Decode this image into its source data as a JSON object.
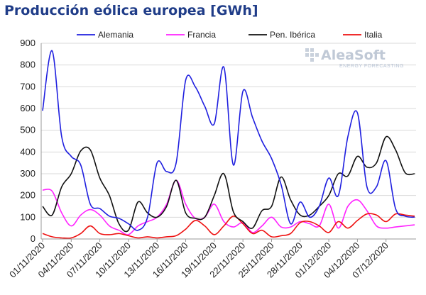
{
  "chart_data": {
    "type": "line",
    "title": "Producción eólica europea [GWh]",
    "xlabel": "",
    "ylabel": "",
    "ylim": [
      0,
      900
    ],
    "yticks": [
      0,
      100,
      200,
      300,
      400,
      500,
      600,
      700,
      800,
      900
    ],
    "grid": true,
    "legend_position": "top",
    "x_tick_labels": [
      "01/11/2020",
      "04/11/2020",
      "07/11/2020",
      "10/11/2020",
      "13/11/2020",
      "16/11/2020",
      "19/11/2020",
      "22/11/2020",
      "25/11/2020",
      "28/11/2020",
      "01/12/2020",
      "04/12/2020",
      "07/12/2020"
    ],
    "x": [
      "01/11",
      "02/11",
      "03/11",
      "04/11",
      "05/11",
      "06/11",
      "07/11",
      "08/11",
      "09/11",
      "10/11",
      "11/11",
      "12/11",
      "13/11",
      "14/11",
      "15/11",
      "16/11",
      "17/11",
      "18/11",
      "19/11",
      "20/11",
      "21/11",
      "22/11",
      "23/11",
      "24/11",
      "25/11",
      "26/11",
      "27/11",
      "28/11",
      "29/11",
      "30/11",
      "01/12",
      "02/12",
      "03/12",
      "04/12",
      "05/12",
      "06/12",
      "07/12",
      "08/12",
      "09/12",
      "10/12"
    ],
    "series": [
      {
        "name": "Alemania",
        "color": "#1f1fdf",
        "values": [
          590,
          865,
          470,
          380,
          340,
          160,
          140,
          105,
          95,
          70,
          40,
          100,
          350,
          310,
          350,
          730,
          700,
          610,
          530,
          790,
          340,
          680,
          560,
          450,
          370,
          250,
          70,
          170,
          100,
          150,
          280,
          200,
          470,
          580,
          240,
          240,
          360,
          140,
          105,
          100
        ]
      },
      {
        "name": "Francia",
        "color": "#ff22ff",
        "values": [
          225,
          220,
          120,
          60,
          110,
          135,
          110,
          60,
          40,
          20,
          60,
          80,
          100,
          160,
          270,
          160,
          95,
          100,
          160,
          80,
          55,
          75,
          30,
          60,
          100,
          55,
          55,
          80,
          70,
          60,
          160,
          50,
          150,
          180,
          130,
          60,
          50,
          55,
          60,
          65
        ]
      },
      {
        "name": "Pen. Ibérica",
        "color": "#111111",
        "values": [
          150,
          110,
          240,
          300,
          405,
          410,
          280,
          200,
          70,
          40,
          170,
          120,
          100,
          150,
          270,
          120,
          95,
          100,
          200,
          300,
          125,
          80,
          50,
          130,
          150,
          285,
          180,
          110,
          110,
          150,
          200,
          300,
          290,
          380,
          330,
          350,
          470,
          410,
          305,
          300
        ]
      },
      {
        "name": "Italia",
        "color": "#ee1111",
        "values": [
          25,
          10,
          5,
          5,
          25,
          60,
          25,
          20,
          25,
          15,
          5,
          10,
          5,
          10,
          15,
          45,
          85,
          60,
          20,
          60,
          105,
          70,
          25,
          40,
          10,
          15,
          25,
          75,
          80,
          60,
          30,
          80,
          50,
          85,
          115,
          110,
          80,
          115,
          110,
          105
        ]
      }
    ]
  },
  "watermark": {
    "brand": "AleaSoft",
    "tagline": "ENERGY FORECASTING"
  }
}
